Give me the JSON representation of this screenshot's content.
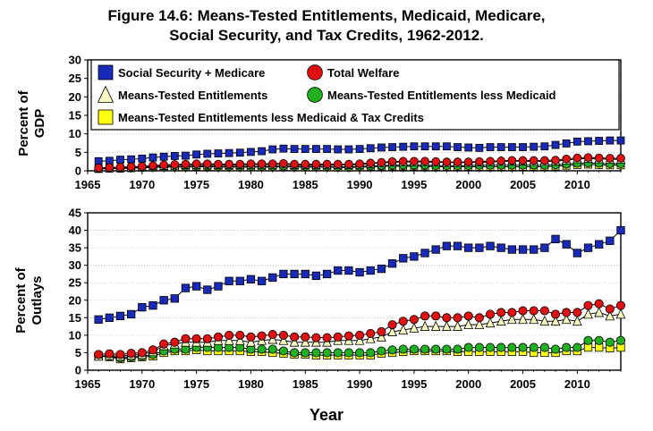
{
  "title_line1": "Figure 14.6: Means-Tested Entitlements, Medicaid, Medicare,",
  "title_line2": "Social Security, and Tax Credits, 1962-2012.",
  "colors": {
    "ss_medicare": "#1a2ab8",
    "total_welfare": "#e01010",
    "means_tested": "#fbfbc0",
    "less_medicaid": "#20b020",
    "less_medicaid_tax": "#ffff10"
  },
  "chart_data": [
    {
      "type": "line",
      "ylabel_line1": "Percent of",
      "ylabel_line2": "GDP",
      "xlabel": "",
      "xlim": [
        1965,
        2014
      ],
      "ylim": [
        0,
        30
      ],
      "xticks": [
        1965,
        1970,
        1975,
        1980,
        1985,
        1990,
        1995,
        2000,
        2005,
        2010
      ],
      "yticks": [
        0,
        5,
        10,
        15,
        20,
        25,
        30
      ],
      "legend": "top-left",
      "legend_entries": [
        {
          "key": "ss_medicare",
          "label": "Social Security + Medicare",
          "marker": "square"
        },
        {
          "key": "total_welfare",
          "label": "Total Welfare",
          "marker": "circle"
        },
        {
          "key": "means_tested",
          "label": "Means-Tested Entitlements",
          "marker": "triangle"
        },
        {
          "key": "less_medicaid",
          "label": "Means-Tested Entitlements less Medicaid",
          "marker": "circle"
        },
        {
          "key": "less_medicaid_tax",
          "label": "Means-Tested Entitlements less Medicaid & Tax Credits",
          "marker": "square"
        }
      ],
      "x": [
        1966,
        1967,
        1968,
        1969,
        1970,
        1971,
        1972,
        1973,
        1974,
        1975,
        1976,
        1977,
        1978,
        1979,
        1980,
        1981,
        1982,
        1983,
        1984,
        1985,
        1986,
        1987,
        1988,
        1989,
        1990,
        1991,
        1992,
        1993,
        1994,
        1995,
        1996,
        1997,
        1998,
        1999,
        2000,
        2001,
        2002,
        2003,
        2004,
        2005,
        2006,
        2007,
        2008,
        2009,
        2010,
        2011,
        2012,
        2013,
        2014
      ],
      "series": [
        {
          "key": "ss_medicare",
          "marker": "square",
          "values": [
            2.6,
            2.7,
            3.0,
            3.1,
            3.3,
            3.6,
            3.8,
            4.0,
            4.1,
            4.4,
            4.6,
            4.7,
            4.8,
            4.9,
            5.1,
            5.3,
            5.8,
            6.0,
            5.9,
            5.9,
            5.9,
            5.9,
            5.8,
            5.8,
            5.9,
            6.1,
            6.3,
            6.4,
            6.5,
            6.6,
            6.6,
            6.6,
            6.6,
            6.4,
            6.3,
            6.2,
            6.4,
            6.4,
            6.4,
            6.4,
            6.5,
            6.6,
            7.0,
            7.4,
            7.9,
            8.0,
            8.1,
            8.2,
            8.2
          ]
        },
        {
          "key": "total_welfare",
          "marker": "circle",
          "values": [
            0.8,
            0.9,
            1.0,
            1.1,
            1.2,
            1.4,
            1.6,
            1.7,
            1.8,
            1.9,
            1.9,
            1.8,
            1.8,
            1.8,
            1.9,
            1.9,
            1.9,
            2.0,
            1.8,
            1.8,
            1.8,
            1.8,
            1.8,
            1.8,
            1.9,
            2.1,
            2.3,
            2.5,
            2.6,
            2.6,
            2.6,
            2.5,
            2.4,
            2.4,
            2.4,
            2.5,
            2.6,
            2.7,
            2.8,
            2.8,
            2.8,
            2.8,
            2.9,
            3.2,
            3.5,
            3.6,
            3.5,
            3.4,
            3.4
          ]
        },
        {
          "key": "means_tested",
          "marker": "triangle",
          "values": [
            0.7,
            0.8,
            0.9,
            1.0,
            1.1,
            1.3,
            1.4,
            1.5,
            1.6,
            1.7,
            1.7,
            1.6,
            1.6,
            1.6,
            1.7,
            1.7,
            1.7,
            1.8,
            1.6,
            1.6,
            1.6,
            1.6,
            1.6,
            1.6,
            1.7,
            1.9,
            2.1,
            2.3,
            2.4,
            2.4,
            2.4,
            2.3,
            2.2,
            2.2,
            2.2,
            2.3,
            2.4,
            2.5,
            2.6,
            2.6,
            2.5,
            2.5,
            2.6,
            2.9,
            3.2,
            3.3,
            3.2,
            3.1,
            3.1
          ]
        },
        {
          "key": "less_medicaid",
          "marker": "circle",
          "values": [
            0.6,
            0.7,
            0.7,
            0.8,
            0.9,
            1.0,
            1.1,
            1.2,
            1.2,
            1.3,
            1.3,
            1.2,
            1.2,
            1.2,
            1.2,
            1.2,
            1.2,
            1.3,
            1.2,
            1.2,
            1.2,
            1.2,
            1.1,
            1.1,
            1.2,
            1.3,
            1.4,
            1.5,
            1.5,
            1.5,
            1.5,
            1.4,
            1.4,
            1.4,
            1.4,
            1.5,
            1.5,
            1.5,
            1.5,
            1.5,
            1.5,
            1.5,
            1.6,
            1.8,
            2.0,
            2.1,
            2.0,
            1.9,
            1.9
          ]
        },
        {
          "key": "less_medicaid_tax",
          "marker": "square",
          "values": [
            0.5,
            0.6,
            0.6,
            0.7,
            0.8,
            0.9,
            1.0,
            1.0,
            1.0,
            1.1,
            1.1,
            1.0,
            1.0,
            1.0,
            1.0,
            1.0,
            1.0,
            1.1,
            1.0,
            1.0,
            1.0,
            1.0,
            0.9,
            0.9,
            1.0,
            1.1,
            1.2,
            1.2,
            1.2,
            1.2,
            1.2,
            1.1,
            1.1,
            1.1,
            1.1,
            1.1,
            1.1,
            1.1,
            1.1,
            1.1,
            1.1,
            1.1,
            1.2,
            1.4,
            1.6,
            1.7,
            1.6,
            1.5,
            1.5
          ]
        }
      ]
    },
    {
      "type": "line",
      "ylabel_line1": "Percent of",
      "ylabel_line2": "Outlays",
      "xlabel": "Year",
      "xlim": [
        1965,
        2014
      ],
      "ylim": [
        0,
        45
      ],
      "xticks": [
        1965,
        1970,
        1975,
        1980,
        1985,
        1990,
        1995,
        2000,
        2005,
        2010
      ],
      "yticks": [
        0,
        5,
        10,
        15,
        20,
        25,
        30,
        35,
        40,
        45
      ],
      "x": [
        1966,
        1967,
        1968,
        1969,
        1970,
        1971,
        1972,
        1973,
        1974,
        1975,
        1976,
        1977,
        1978,
        1979,
        1980,
        1981,
        1982,
        1983,
        1984,
        1985,
        1986,
        1987,
        1988,
        1989,
        1990,
        1991,
        1992,
        1993,
        1994,
        1995,
        1996,
        1997,
        1998,
        1999,
        2000,
        2001,
        2002,
        2003,
        2004,
        2005,
        2006,
        2007,
        2008,
        2009,
        2010,
        2011,
        2012,
        2013,
        2014
      ],
      "series": [
        {
          "key": "ss_medicare",
          "marker": "square",
          "values": [
            14.5,
            15.0,
            15.5,
            16.0,
            18.0,
            18.5,
            20.0,
            20.5,
            23.5,
            24.0,
            23.0,
            24.0,
            25.5,
            25.5,
            26.0,
            25.5,
            26.5,
            27.5,
            27.5,
            27.5,
            27.0,
            27.5,
            28.5,
            28.5,
            28.0,
            28.5,
            29.0,
            30.5,
            32.0,
            32.5,
            33.5,
            34.5,
            35.5,
            35.5,
            35.0,
            35.0,
            35.5,
            35.0,
            34.5,
            34.5,
            34.5,
            35.0,
            37.5,
            36.0,
            33.5,
            35.0,
            36.0,
            37.0,
            40.0
          ]
        },
        {
          "key": "total_welfare",
          "marker": "circle",
          "values": [
            4.5,
            4.7,
            4.5,
            4.8,
            5.0,
            5.8,
            7.5,
            8.0,
            9.0,
            9.0,
            9.0,
            9.5,
            10.0,
            10.0,
            9.5,
            9.8,
            10.2,
            10.0,
            9.5,
            9.5,
            9.3,
            9.3,
            9.5,
            9.8,
            10.0,
            10.5,
            11.0,
            13.0,
            14.0,
            14.5,
            15.5,
            15.5,
            15.0,
            15.0,
            15.5,
            15.0,
            16.0,
            16.5,
            16.5,
            17.0,
            17.0,
            17.0,
            16.0,
            16.5,
            16.5,
            18.5,
            19.0,
            17.5,
            18.5
          ]
        },
        {
          "key": "means_tested",
          "marker": "triangle",
          "values": [
            4.0,
            4.2,
            4.0,
            4.3,
            4.5,
            5.3,
            7.0,
            7.5,
            8.0,
            8.0,
            8.0,
            8.5,
            8.5,
            8.5,
            8.0,
            8.5,
            8.8,
            8.5,
            8.0,
            8.0,
            8.0,
            8.0,
            8.5,
            8.5,
            8.5,
            9.0,
            9.5,
            11.0,
            11.5,
            12.0,
            12.5,
            12.5,
            12.5,
            12.5,
            13.0,
            13.0,
            13.5,
            14.0,
            14.5,
            14.5,
            14.5,
            14.0,
            14.0,
            14.5,
            14.0,
            16.0,
            16.5,
            15.5,
            16.0
          ]
        },
        {
          "key": "less_medicaid",
          "marker": "circle",
          "values": [
            4.2,
            4.0,
            3.5,
            3.8,
            4.0,
            4.5,
            5.5,
            6.0,
            6.0,
            6.5,
            6.5,
            6.5,
            6.5,
            6.5,
            6.0,
            6.0,
            6.0,
            5.5,
            5.0,
            5.0,
            5.0,
            5.0,
            5.0,
            5.0,
            5.0,
            5.0,
            5.5,
            5.8,
            6.0,
            6.0,
            6.0,
            6.0,
            6.0,
            6.0,
            6.5,
            6.5,
            6.5,
            6.5,
            6.5,
            6.5,
            6.5,
            6.5,
            6.0,
            6.5,
            6.5,
            8.5,
            8.5,
            8.0,
            8.5
          ]
        },
        {
          "key": "less_medicaid_tax",
          "marker": "square",
          "values": [
            4.0,
            3.8,
            3.2,
            3.5,
            3.8,
            4.0,
            5.0,
            5.5,
            5.5,
            5.8,
            5.5,
            5.5,
            5.5,
            5.5,
            5.3,
            5.3,
            5.0,
            4.8,
            4.5,
            4.5,
            4.3,
            4.3,
            4.3,
            4.3,
            4.3,
            4.3,
            4.8,
            5.0,
            5.3,
            5.5,
            5.5,
            5.5,
            5.5,
            5.3,
            5.3,
            5.3,
            5.3,
            5.3,
            5.3,
            5.3,
            5.0,
            5.0,
            5.0,
            5.5,
            5.5,
            6.5,
            6.5,
            6.3,
            6.5
          ]
        }
      ]
    }
  ]
}
